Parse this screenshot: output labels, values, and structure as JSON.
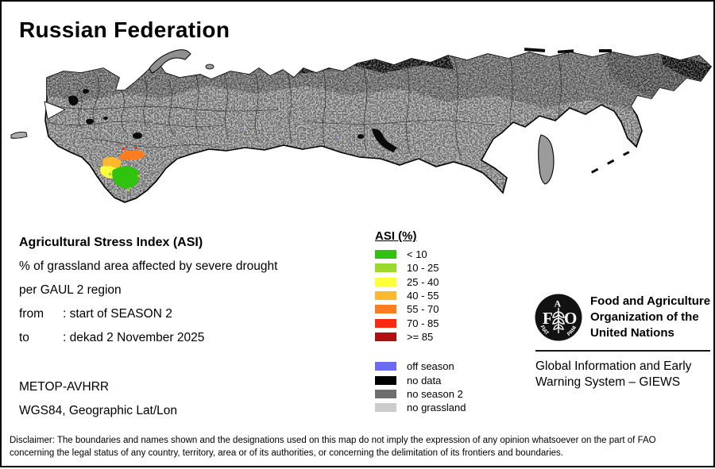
{
  "title": "Russian Federation",
  "info": {
    "heading": "Agricultural Stress Index (ASI)",
    "line1": "% of grassland area affected by severe drought",
    "line2": "per GAUL 2 region",
    "from_label": "from",
    "from_value": ": start of SEASON 2",
    "to_label": "to",
    "to_value": ": dekad 2 November 2025",
    "sensor": "METOP-AVHRR",
    "projection": "WGS84, Geographic Lat/Lon"
  },
  "legend": {
    "title": "ASI (%)",
    "asi_classes": [
      {
        "label": "< 10",
        "color": "#2FC30F"
      },
      {
        "label": "10 - 25",
        "color": "#9BD92E"
      },
      {
        "label": "25 - 40",
        "color": "#FFFF3A"
      },
      {
        "label": "40 - 55",
        "color": "#FDB92D"
      },
      {
        "label": "55 - 70",
        "color": "#FB7D20"
      },
      {
        "label": "70 - 85",
        "color": "#F92A0F"
      },
      {
        "label": ">= 85",
        "color": "#B01010"
      }
    ],
    "status_classes": [
      {
        "label": "off season",
        "color": "#6B6BF2"
      },
      {
        "label": "no data",
        "color": "#000000"
      },
      {
        "label": "no season 2",
        "color": "#6E6E6E"
      },
      {
        "label": "no grassland",
        "color": "#CCCCCC"
      }
    ]
  },
  "org": {
    "logo": {
      "f": "F",
      "a": "A",
      "o": "O",
      "motto_left": "FIAT",
      "motto_right": "PANIS"
    },
    "name_line1": "Food and Agriculture",
    "name_line2": "Organization of the",
    "name_line3": "United Nations",
    "system_line1": "Global Information and Early",
    "system_line2": "Warning System – GIEWS"
  },
  "disclaimer": {
    "line1": "Disclaimer: The boundaries and names shown and the designations used on this map do not imply the expression of any opinion whatsoever on the part of FAO",
    "line2": "concerning the legal status of any country, territory, area or of its authorities, or concerning the delimitation of its frontiers and boundaries."
  },
  "map": {
    "palette": {
      "no_grassland": "#C9C9C9",
      "no_season2": "#7A7A7A",
      "no_season2_dark": "#5E5E5E",
      "no_data": "#0A0A0A",
      "off_season": "#6B6BF2",
      "asi_green": "#2FC30F",
      "asi_lightgreen": "#9BD92E",
      "asi_yellow": "#FFFF3A",
      "asi_amber": "#FDB92D",
      "asi_orange": "#FB7D20",
      "asi_red": "#F92A0F"
    }
  }
}
